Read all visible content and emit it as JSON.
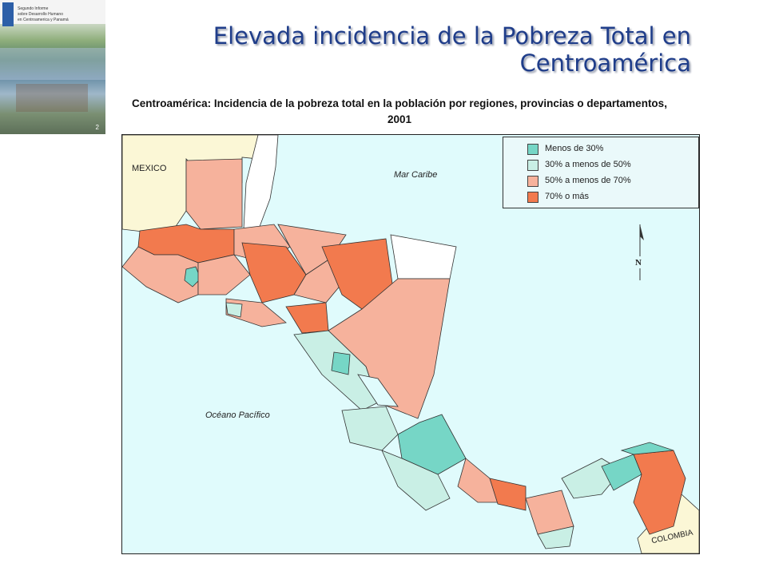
{
  "slide": {
    "title": "Elevada incidencia de la Pobreza Total en\nCentroamérica",
    "subtitle": "Centroamérica: Incidencia de la pobreza total en la población por regiones, provincias o departamentos, 2001"
  },
  "cover_thumbnail": {
    "lines": [
      "Segundo Informe",
      "sobre Desarrollo Humano",
      "en Centroamerica y Panamá"
    ],
    "page_number": "2"
  },
  "map": {
    "legend": [
      {
        "label": "Menos de 30%",
        "color": "#76d6c6"
      },
      {
        "label": "30% a menos de 50%",
        "color": "#c9efe5"
      },
      {
        "label": "50% a menos de 70%",
        "color": "#f6b29c"
      },
      {
        "label": "70% o más",
        "color": "#f27a4e"
      }
    ],
    "labels": {
      "mexico": "MEXICO",
      "caribbean": "Mar Caribe",
      "pacific": "Océano Pacífico",
      "colombia": "COLOMBIA",
      "north": "N"
    },
    "colors": {
      "sea": "#e0fbfc",
      "no_data": "#ffffff",
      "neighbor_land": "#fbf7d6",
      "border": "#333333"
    }
  }
}
